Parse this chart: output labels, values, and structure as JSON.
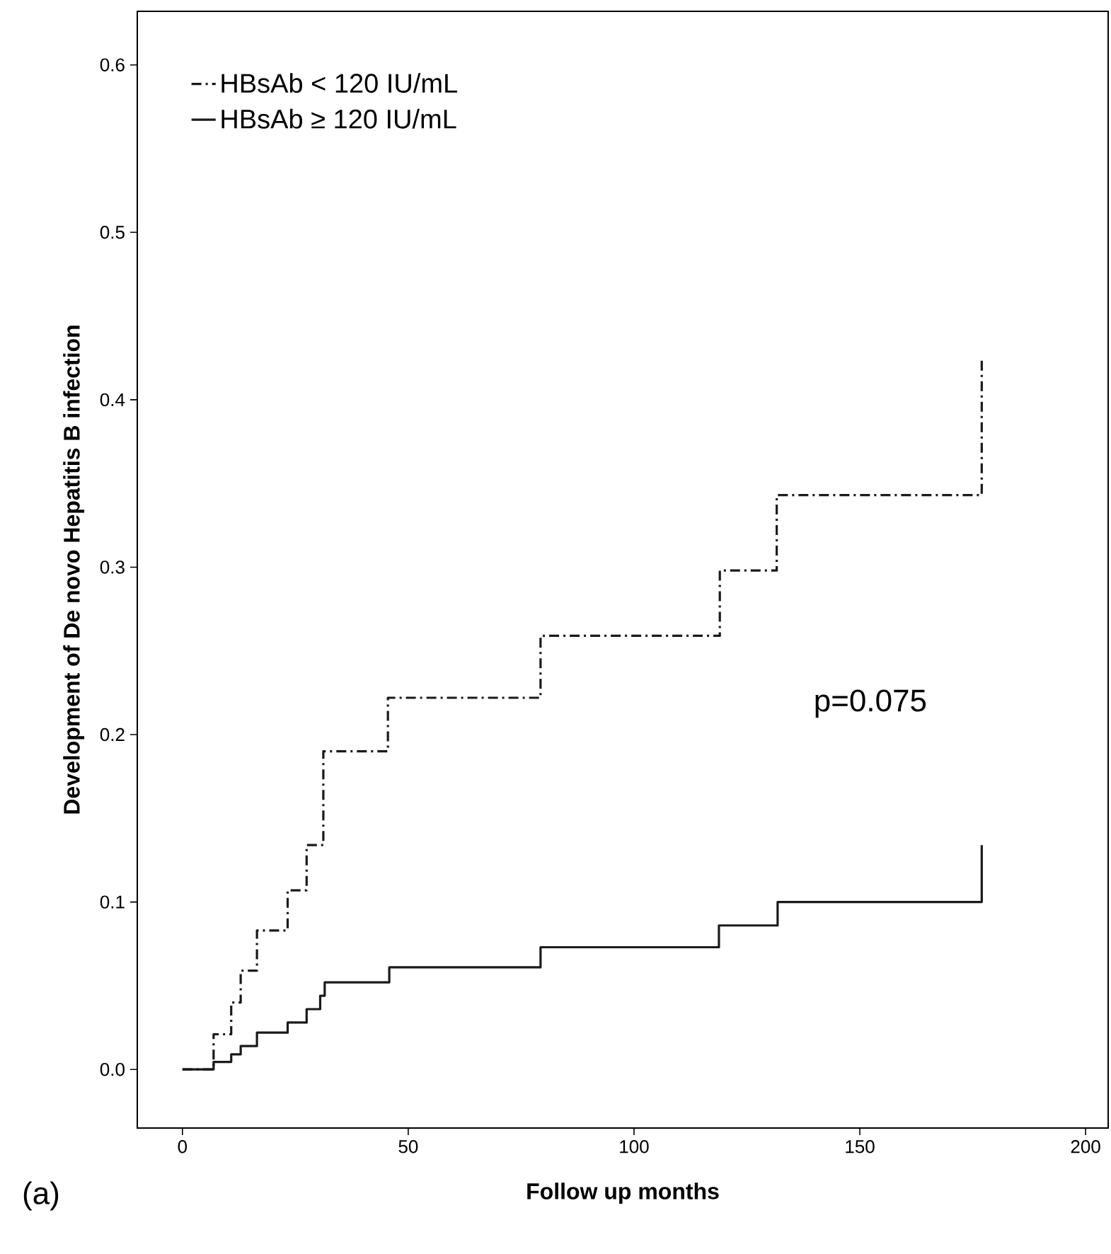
{
  "chart_data": {
    "type": "step",
    "xlabel": "Follow up months",
    "ylabel": "Development of De novo Hepatitis B infection",
    "annotations": [
      "p=0.075",
      "(a)"
    ],
    "xlim": [
      -10,
      205
    ],
    "ylim": [
      -0.035,
      0.632
    ],
    "xticks": [
      0,
      50,
      100,
      150,
      200
    ],
    "yticks": [
      {
        "value": 0,
        "label": "0.0"
      },
      {
        "value": 0.1,
        "label": "0.1"
      },
      {
        "value": 0.2,
        "label": "0.2"
      },
      {
        "value": 0.3,
        "label": "0.3"
      },
      {
        "value": 0.4,
        "label": "0.4"
      },
      {
        "value": 0.5,
        "label": "0.5"
      },
      {
        "value": 0.6,
        "label": "0.6"
      }
    ],
    "legend": "top left",
    "grid": false,
    "marker": "none",
    "series": [
      {
        "name": "HBsAb < 120 IU/mL",
        "color": "#1a1a1a",
        "line_style": "dashed",
        "x": [
          0,
          6.9,
          10.8,
          12.9,
          16.5,
          23.3,
          27.5,
          31.2,
          45.5,
          79.3,
          119,
          131.6,
          177
        ],
        "values": [
          0,
          0.021,
          0.04,
          0.059,
          0.083,
          0.107,
          0.134,
          0.19,
          0.222,
          0.259,
          0.298,
          0.343,
          0.425
        ]
      },
      {
        "name": "HBsAb ≥ 120 IU/mL",
        "color": "#1a1a1a",
        "line_style": "solid",
        "x": [
          0,
          6.9,
          10.8,
          12.9,
          16.5,
          23.3,
          27.5,
          30.5,
          31.5,
          45.8,
          79.3,
          118.8,
          131.8,
          177
        ],
        "values": [
          0,
          0.0045,
          0.009,
          0.014,
          0.022,
          0.028,
          0.036,
          0.044,
          0.052,
          0.061,
          0.073,
          0.086,
          0.1,
          0.134
        ]
      }
    ]
  }
}
